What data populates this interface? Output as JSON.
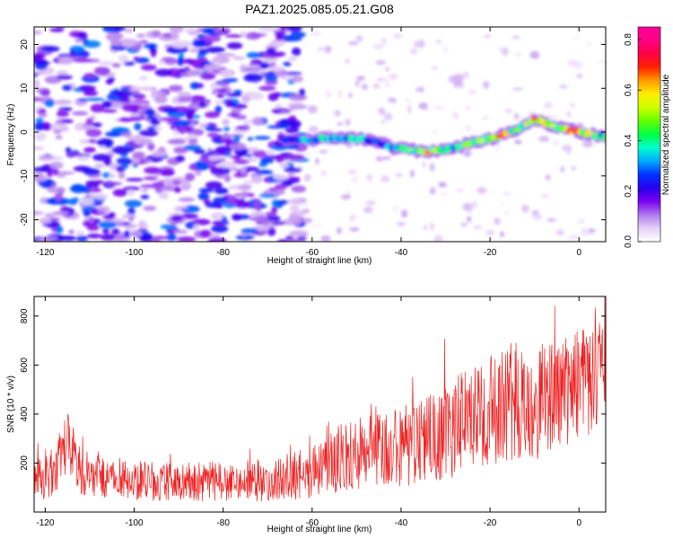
{
  "figure": {
    "title": "PAZ1.2025.085.05.21.G08"
  },
  "chart_data": [
    {
      "type": "heatmap",
      "title": "PAZ1.2025.085.05.21.G08",
      "xlabel": "Height of straight line (km)",
      "ylabel": "Frequency (Hz)",
      "xlim": [
        -122.5,
        6
      ],
      "ylim": [
        -25,
        24
      ],
      "x_ticks": [
        -120,
        -100,
        -80,
        -60,
        -40,
        -20,
        0
      ],
      "y_ticks": [
        -20,
        -10,
        0,
        10,
        20
      ],
      "colorbar": {
        "label": "Normalized spectral amplitude",
        "range": [
          0.0,
          0.85
        ],
        "ticks": [
          0.0,
          0.2,
          0.4,
          0.6,
          0.8
        ],
        "colors": [
          "#ffffff",
          "#e6cff7",
          "#b07aee",
          "#7a00ee",
          "#2a00f0",
          "#0033ff",
          "#00aaff",
          "#00ffcc",
          "#00ff44",
          "#66ff00",
          "#ccff00",
          "#ffee00",
          "#ff9900",
          "#ff2200",
          "#ff0044",
          "#ff0088",
          "#ff0099"
        ]
      },
      "signal_track": {
        "x": [
          -67,
          -63,
          -58,
          -54,
          -50,
          -46,
          -42,
          -38,
          -34,
          -30,
          -26,
          -22,
          -18,
          -14,
          -10,
          -6,
          -2,
          2,
          6
        ],
        "freq": [
          -1.5,
          -2,
          -1.5,
          -1.5,
          -1.5,
          -2,
          -3.5,
          -4,
          -4.5,
          -4,
          -3,
          -2,
          -1,
          0.5,
          3,
          1.5,
          0.5,
          -0.5,
          -1
        ],
        "amplitude": [
          0.25,
          0.35,
          0.4,
          0.35,
          0.45,
          0.3,
          0.4,
          0.5,
          0.65,
          0.45,
          0.5,
          0.55,
          0.75,
          0.5,
          0.7,
          0.55,
          0.75,
          0.6,
          0.45
        ]
      },
      "noise_region": {
        "x_range": [
          -122.5,
          -62
        ],
        "typical_amplitude": [
          0.05,
          0.3
        ]
      }
    },
    {
      "type": "line",
      "xlabel": "Height of straight line (km)",
      "ylabel": "SNR (10 * v/v)",
      "xlim": [
        -122.5,
        6
      ],
      "ylim": [
        0,
        880
      ],
      "x_ticks": [
        -120,
        -100,
        -80,
        -60,
        -40,
        -20,
        0
      ],
      "y_ticks": [
        200,
        400,
        600,
        800
      ],
      "series": [
        {
          "name": "SNR",
          "color": "#ee2222",
          "baseline_x": [
            -122.5,
            -118,
            -115,
            -112,
            -110,
            -100,
            -90,
            -80,
            -70,
            -60,
            -55,
            -50,
            -45,
            -40,
            -35,
            -30,
            -25,
            -20,
            -15,
            -10,
            -5,
            0,
            6
          ],
          "baseline_mean": [
            140,
            160,
            290,
            170,
            150,
            130,
            125,
            125,
            130,
            160,
            210,
            240,
            250,
            270,
            290,
            320,
            380,
            420,
            440,
            450,
            470,
            520,
            560
          ],
          "noise_amplitude": [
            60,
            70,
            80,
            70,
            60,
            55,
            55,
            55,
            60,
            70,
            90,
            100,
            100,
            110,
            120,
            130,
            140,
            150,
            170,
            160,
            150,
            150,
            150
          ],
          "sample_count": 1200,
          "max": 880,
          "min": 20
        }
      ]
    }
  ]
}
